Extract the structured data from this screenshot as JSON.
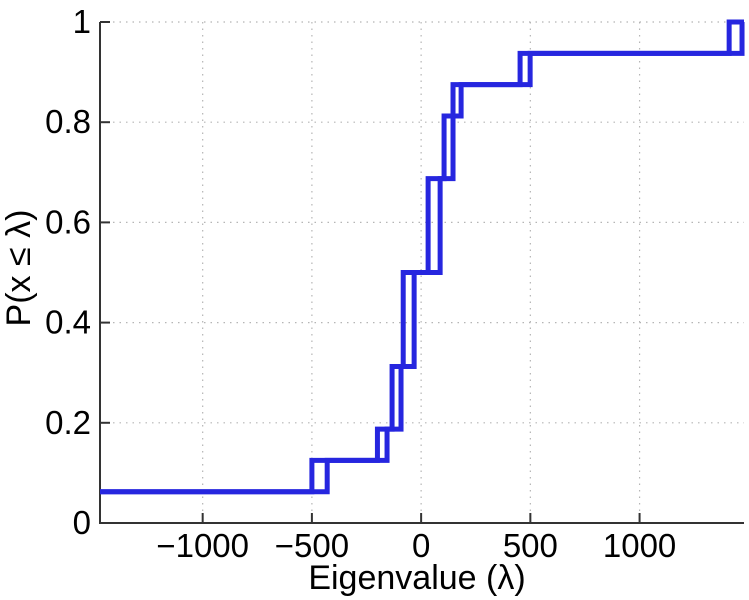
{
  "figure": {
    "background": "#ffffff"
  },
  "chart_data": {
    "type": "step",
    "subtype": "empirical-cdf",
    "title": "",
    "xlabel": "Eigenvalue (λ)",
    "ylabel": "P(x ≤ λ)",
    "xlim": [
      -1470,
      1478
    ],
    "ylim": [
      0,
      1
    ],
    "grid": "dotted",
    "legend": "none",
    "step_size": 0.0625,
    "line_color": "#2626df",
    "line_width": 5,
    "axis_color": "#333333",
    "grid_color": "#b5b5b5",
    "text_color": "#000000",
    "xticks": [
      {
        "value": -1000,
        "label": "−1000"
      },
      {
        "value": -500,
        "label": "−500"
      },
      {
        "value": 0,
        "label": "0"
      },
      {
        "value": 500,
        "label": "500"
      },
      {
        "value": 1000,
        "label": "1000"
      }
    ],
    "yticks": [
      {
        "value": 0,
        "label": "0"
      },
      {
        "value": 0.2,
        "label": "0.2"
      },
      {
        "value": 0.4,
        "label": "0.4"
      },
      {
        "value": 0.6,
        "label": "0.6"
      },
      {
        "value": 0.8,
        "label": "0.8"
      },
      {
        "value": 1,
        "label": "1"
      }
    ],
    "series": [
      {
        "name": "ecdf-staircase-left",
        "start_level": 0.0625,
        "risers": [
          {
            "x": -500,
            "level": 0.125
          },
          {
            "x": -200,
            "level": 0.1875
          },
          {
            "x": -133,
            "level": 0.3125
          },
          {
            "x": -82,
            "level": 0.5
          },
          {
            "x": 32,
            "level": 0.6875
          },
          {
            "x": 105,
            "level": 0.8125
          },
          {
            "x": 183,
            "level": 0.875
          },
          {
            "x": 453,
            "level": 0.9375
          },
          {
            "x": 1410,
            "level": 1.0
          }
        ]
      },
      {
        "name": "ecdf-staircase-right",
        "start_level": 0.0625,
        "risers": [
          {
            "x": -430,
            "level": 0.125
          },
          {
            "x": -156,
            "level": 0.1875
          },
          {
            "x": -92,
            "level": 0.3125
          },
          {
            "x": -32,
            "level": 0.5
          },
          {
            "x": 87,
            "level": 0.6875
          },
          {
            "x": 146,
            "level": 0.875
          },
          {
            "x": 499,
            "level": 0.9375
          },
          {
            "x": 1469,
            "level": 1.0
          }
        ]
      }
    ]
  }
}
